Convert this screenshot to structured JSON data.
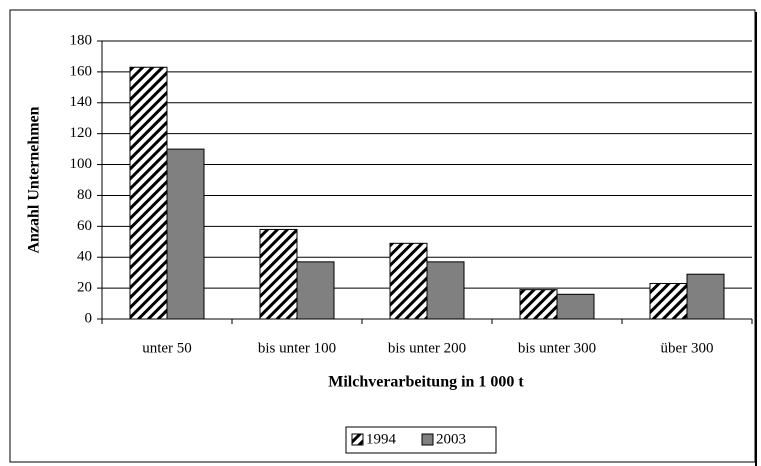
{
  "chart_data": {
    "type": "bar",
    "x_label": "Milchverarbeitung in 1 000 t",
    "y_label": "Anzahl Unternehmen",
    "categories": [
      "unter 50",
      "bis unter 100",
      "bis unter 200",
      "bis unter 300",
      "über 300"
    ],
    "series": [
      {
        "name": "1994",
        "color": "#000000",
        "hatch": true,
        "values": [
          163,
          58,
          49,
          19,
          23
        ]
      },
      {
        "name": "2003",
        "color": "#808080",
        "hatch": false,
        "values": [
          110,
          37,
          37,
          16,
          29
        ]
      }
    ],
    "ylim": [
      0,
      180
    ],
    "yticks": [
      0,
      20,
      40,
      60,
      80,
      100,
      120,
      140,
      160,
      180
    ],
    "grid": true,
    "legend": "bottom"
  }
}
